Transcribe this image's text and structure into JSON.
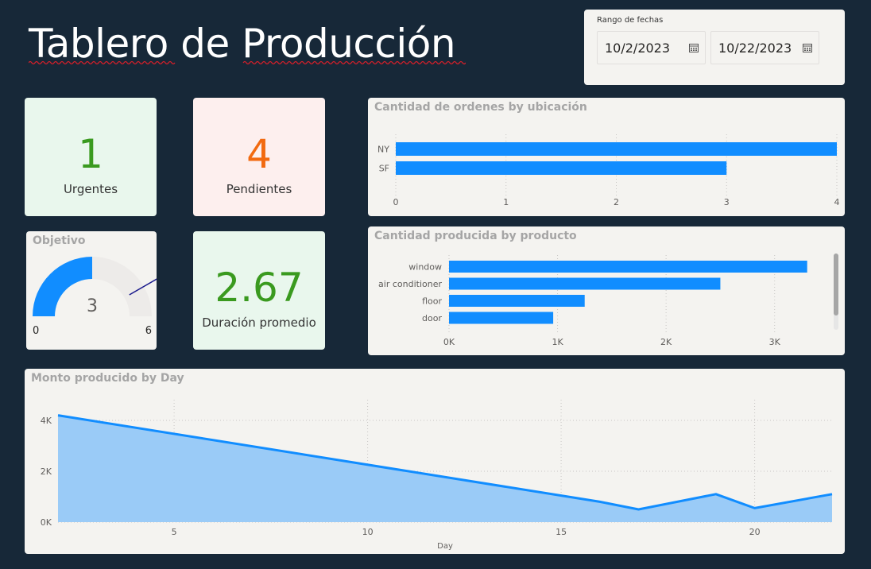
{
  "header": {
    "title": "Tablero de Producción"
  },
  "date_range": {
    "label": "Rango de fechas",
    "start": "10/2/2023",
    "end": "10/22/2023"
  },
  "kpis": {
    "urgent": {
      "value": "1",
      "label": "Urgentes",
      "color": "#3a9a1f",
      "bg": "#e9f7ed"
    },
    "pending": {
      "value": "4",
      "label": "Pendientes",
      "color": "#f26a10",
      "bg": "#fdefee"
    },
    "duration": {
      "value": "2.67",
      "label": "Duración promedio",
      "color": "#3a9a1f",
      "bg": "#e9f7ed"
    }
  },
  "gauge": {
    "title": "Objetivo",
    "value": 3,
    "value_label": "3",
    "min": 0,
    "min_label": "0",
    "max": 6,
    "max_label": "6",
    "target": 5,
    "color": "#118dff"
  },
  "chart_data": [
    {
      "type": "bar",
      "orientation": "horizontal",
      "title": "Cantidad de ordenes by ubicación",
      "categories": [
        "NY",
        "SF"
      ],
      "values": [
        4,
        3
      ],
      "xlim": [
        0,
        4
      ],
      "ticks": [
        "0",
        "1",
        "2",
        "3",
        "4"
      ],
      "color": "#118dff"
    },
    {
      "type": "bar",
      "orientation": "horizontal",
      "title": "Cantidad producida by producto",
      "categories": [
        "window",
        "air conditioner",
        "floor",
        "door"
      ],
      "values": [
        3300,
        2500,
        1250,
        960
      ],
      "xlim": [
        0,
        3500
      ],
      "ticks": [
        {
          "v": 0,
          "label": "0K"
        },
        {
          "v": 1000,
          "label": "1K"
        },
        {
          "v": 2000,
          "label": "2K"
        },
        {
          "v": 3000,
          "label": "3K"
        }
      ],
      "color": "#118dff"
    },
    {
      "type": "area",
      "title": "Monto producido by Day",
      "xlabel": "Day",
      "x": [
        2,
        16,
        17,
        19,
        20,
        22
      ],
      "y": [
        4200,
        800,
        500,
        1100,
        550,
        1100
      ],
      "xlim": [
        2,
        22
      ],
      "ylim": [
        0,
        4500
      ],
      "xticks": [
        {
          "v": 5,
          "label": "5"
        },
        {
          "v": 10,
          "label": "10"
        },
        {
          "v": 15,
          "label": "15"
        },
        {
          "v": 20,
          "label": "20"
        }
      ],
      "yticks": [
        {
          "v": 0,
          "label": "0K"
        },
        {
          "v": 2000,
          "label": "2K"
        },
        {
          "v": 4000,
          "label": "4K"
        }
      ],
      "color": "#118dff",
      "fill": "#9acbf7"
    }
  ]
}
